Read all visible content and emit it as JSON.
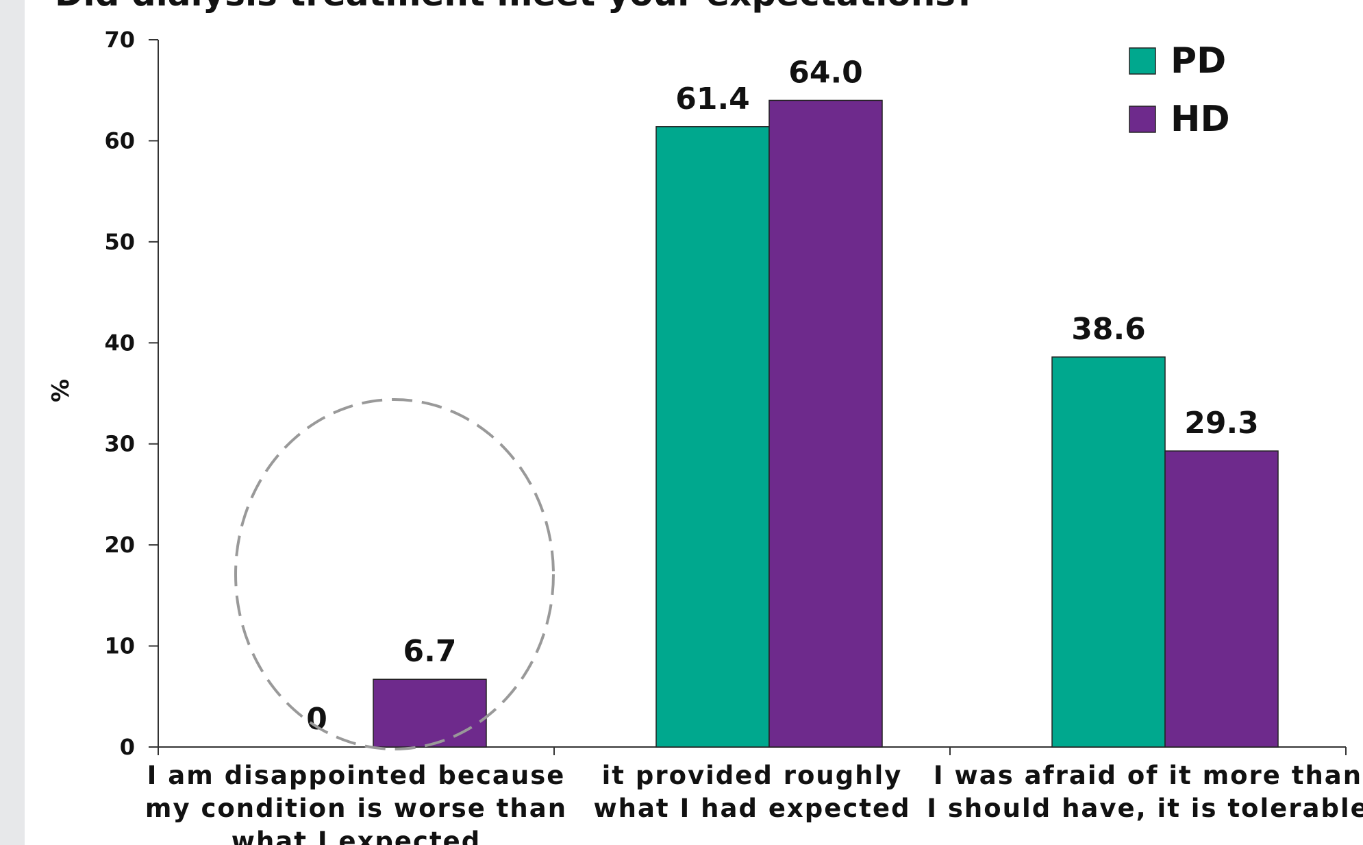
{
  "chart_data": {
    "type": "bar",
    "title": "Did dialysis treatment meet your expectations?",
    "ylabel": "%",
    "xlabel": "",
    "ylim": [
      0,
      70
    ],
    "yticks": [
      0,
      10,
      20,
      30,
      40,
      50,
      60,
      70
    ],
    "categories": [
      [
        "I am disappointed because",
        "my condition is worse than",
        "what I expected"
      ],
      [
        "it provided roughly",
        "what I had expected"
      ],
      [
        "I was afraid of it more than",
        "I should have, it is tolerable"
      ]
    ],
    "series": [
      {
        "name": "PD",
        "color": "#00a88e",
        "values": [
          0,
          61.4,
          38.6
        ],
        "labels": [
          "0",
          "61.4",
          "38.6"
        ]
      },
      {
        "name": "HD",
        "color": "#6e2a8c",
        "values": [
          6.7,
          64.0,
          29.3
        ],
        "labels": [
          "6.7",
          "64.0",
          "29.3"
        ]
      }
    ],
    "legend": "top-right",
    "annotations": [
      "dashed circle around first category"
    ]
  }
}
